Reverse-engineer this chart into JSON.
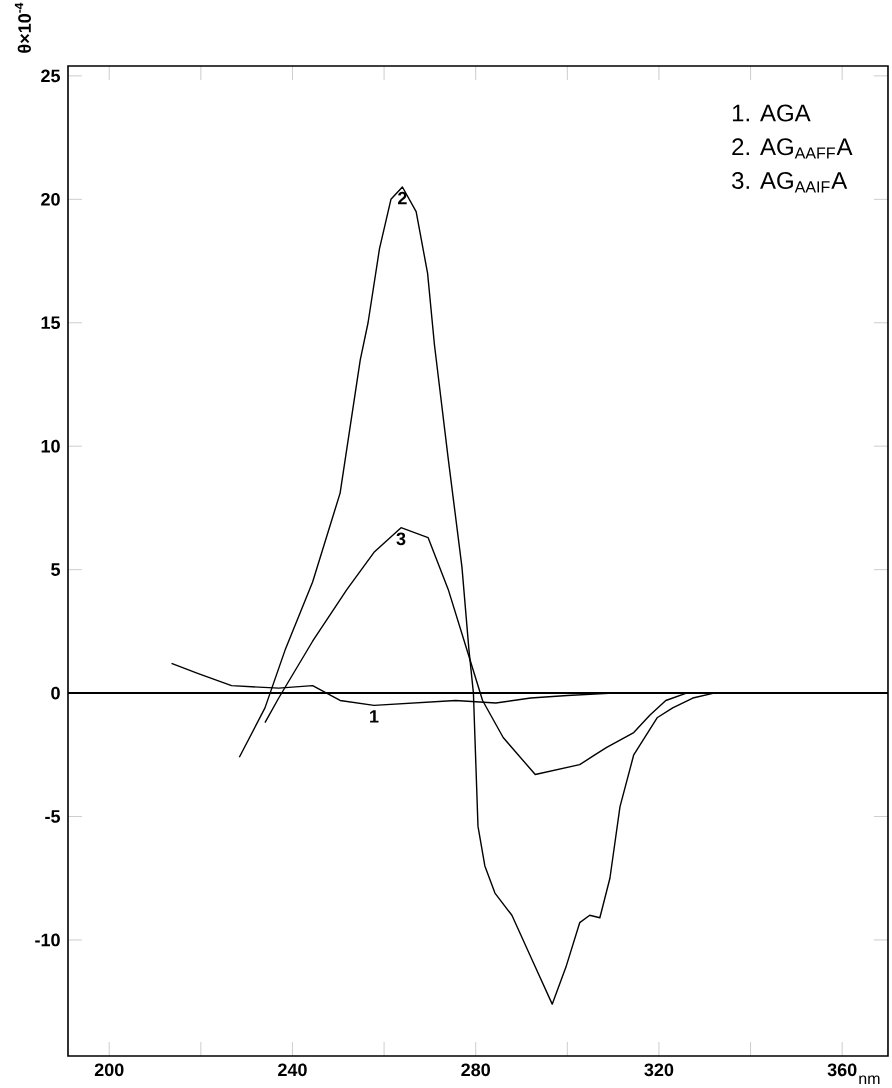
{
  "chart_data": {
    "type": "line",
    "xlabel": "nm",
    "ylabel": "θ×10$^{-4}$",
    "xlim": [
      191,
      370
    ],
    "ylim": [
      -14.7,
      25.4
    ],
    "xticks": [
      200,
      {
        "value": 220,
        "label": null
      },
      240,
      {
        "value": 260,
        "label": null
      },
      280,
      {
        "value": 300,
        "label": null
      },
      320,
      {
        "value": 340,
        "label": null
      },
      360
    ],
    "yticks": [
      -10,
      -5,
      0,
      5,
      10,
      15,
      20,
      25
    ],
    "legend": "top right",
    "line_style": "solid",
    "marker": "none",
    "ref_lines": [
      {
        "axis": "y",
        "value": 0,
        "color": "#000000"
      }
    ],
    "annotations": [
      {
        "text": "1",
        "x": 257.8,
        "y": -0.5
      },
      {
        "text": "2",
        "x": 264,
        "y": 20.5
      },
      {
        "text": "3",
        "x": 263.7,
        "y": 6.7
      }
    ],
    "series": [
      {
        "name": "1. AGA",
        "color": "#000000",
        "x": [
          213.6,
          219.3,
          226.7,
          237,
          244.4,
          250.4,
          257.8,
          266.7,
          275.6,
          284.4,
          292,
          300,
          310
        ],
        "values": [
          1.2,
          0.8,
          0.3,
          0.2,
          0.3,
          -0.3,
          -0.5,
          -0.4,
          -0.3,
          -0.4,
          -0.2,
          -0.1,
          0
        ]
      },
      {
        "name": "2. AG$_{AAFF}$A",
        "color": "#000000",
        "x": [
          228.4,
          234,
          238.5,
          244.4,
          250.4,
          254.8,
          256.5,
          259,
          261.5,
          264,
          267,
          269.5,
          271,
          274,
          277,
          278.5,
          279.5,
          280.5,
          282,
          284.2,
          287.9,
          292.3,
          296.7,
          299.7,
          302.7,
          304.9,
          307.1,
          309.3,
          311.5,
          314.5,
          319.6,
          323,
          327.4,
          332
        ],
        "values": [
          -2.6,
          -0.6,
          1.8,
          4.5,
          8.1,
          13.5,
          15,
          18,
          20,
          20.5,
          19.5,
          17,
          14.1,
          9.5,
          5.1,
          1.8,
          0,
          -5.4,
          -7,
          -8.1,
          -9,
          -10.8,
          -12.6,
          -11.1,
          -9.3,
          -9,
          -9.1,
          -7.5,
          -4.6,
          -2.5,
          -1,
          -0.6,
          -0.2,
          0
        ]
      },
      {
        "name": "3. AG$_{AAIF}$A",
        "color": "#000000",
        "x": [
          234,
          237,
          244.4,
          251.9,
          257.8,
          263.7,
          269.6,
          274,
          278.5,
          281.5,
          286,
          293,
          302.7,
          306,
          308.6,
          314.5,
          318,
          321.5,
          326
        ],
        "values": [
          -1.2,
          -0.2,
          2.1,
          4.2,
          5.7,
          6.7,
          6.3,
          4.2,
          1.5,
          -0.3,
          -1.8,
          -3.3,
          -2.9,
          -2.5,
          -2.2,
          -1.6,
          -0.9,
          -0.3,
          0
        ]
      }
    ]
  }
}
